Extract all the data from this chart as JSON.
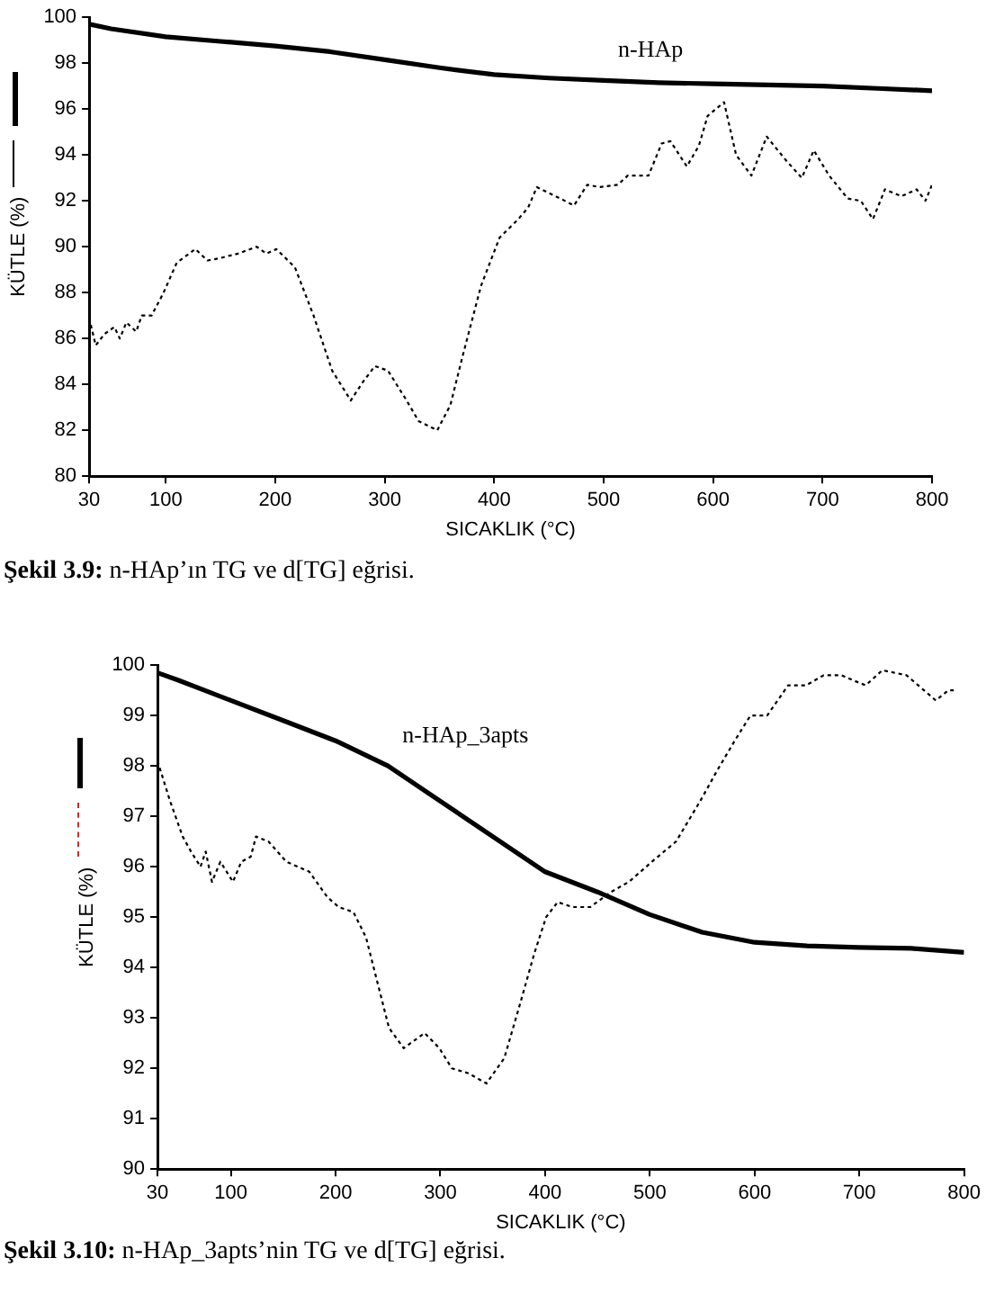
{
  "chart_data": [
    {
      "type": "line",
      "xlabel": "SICAKLIK (°C)",
      "ylabel": "KÜTLE (%)",
      "xlim": [
        30,
        800
      ],
      "xticks": [
        30,
        100,
        200,
        300,
        400,
        500,
        600,
        700,
        800
      ],
      "ylim": [
        80,
        100
      ],
      "yticks": [
        80,
        82,
        84,
        86,
        88,
        90,
        92,
        94,
        96,
        98,
        100
      ],
      "marker": "none",
      "grid": false,
      "annotations": [
        "Şekil 3.9: n-HAp’ın TG ve d[TG] eğrisi."
      ],
      "series": [
        {
          "name": "n-HAp",
          "color": "#000000",
          "line_style": "solid",
          "x": [
            30,
            50,
            100,
            150,
            200,
            250,
            300,
            350,
            400,
            450,
            500,
            550,
            600,
            650,
            700,
            750,
            800
          ],
          "values": [
            99.7,
            99.5,
            99.15,
            98.95,
            98.75,
            98.5,
            98.15,
            97.8,
            97.5,
            97.35,
            97.25,
            97.15,
            97.1,
            97.05,
            97.0,
            96.9,
            96.8
          ]
        },
        {
          "color": "#000000",
          "line_style": "dotted",
          "x": [
            30,
            36,
            44,
            53,
            58,
            64,
            73,
            78,
            87,
            98,
            110,
            127,
            138,
            149,
            166,
            183,
            192,
            201,
            218,
            235,
            252,
            269,
            280,
            291,
            303,
            320,
            331,
            348,
            360,
            371,
            388,
            405,
            422,
            431,
            439,
            456,
            473,
            485,
            496,
            513,
            522,
            541,
            553,
            561,
            576,
            587,
            595,
            610,
            621,
            635,
            649,
            666,
            681,
            692,
            706,
            723,
            735,
            746,
            757,
            772,
            786,
            794,
            800
          ],
          "values": [
            86.9,
            85.7,
            86.2,
            86.5,
            86.0,
            86.7,
            86.3,
            87.0,
            87.0,
            88.0,
            89.3,
            89.9,
            89.4,
            89.5,
            89.7,
            90.0,
            89.7,
            89.9,
            89.1,
            87.0,
            84.6,
            83.3,
            84.1,
            84.8,
            84.6,
            83.3,
            82.4,
            82.0,
            83.1,
            85.2,
            88.3,
            90.4,
            91.2,
            91.7,
            92.6,
            92.2,
            91.8,
            92.7,
            92.6,
            92.7,
            93.1,
            93.1,
            94.5,
            94.6,
            93.5,
            94.4,
            95.7,
            96.3,
            94.0,
            93.1,
            94.8,
            93.8,
            93.0,
            94.2,
            93.1,
            92.1,
            92.0,
            91.2,
            92.5,
            92.2,
            92.5,
            92.0,
            92.7
          ]
        }
      ]
    },
    {
      "type": "line",
      "xlabel": "SICAKLIK (°C)",
      "ylabel": "KÜTLE (%)",
      "xlim": [
        30,
        800
      ],
      "xticks": [
        30,
        100,
        200,
        300,
        400,
        500,
        600,
        700,
        800
      ],
      "ylim": [
        90,
        100
      ],
      "yticks": [
        90,
        91,
        92,
        93,
        94,
        95,
        96,
        97,
        98,
        99,
        100
      ],
      "marker": "none",
      "grid": false,
      "annotations": [
        "Şekil 3.10: n-HAp_3apts’nin TG ve d[TG] eğrisi."
      ],
      "series": [
        {
          "name": "n-HAp_3apts",
          "color": "#000000",
          "line_style": "solid",
          "x": [
            30,
            50,
            100,
            150,
            200,
            250,
            300,
            350,
            400,
            450,
            500,
            550,
            600,
            650,
            700,
            750,
            800
          ],
          "values": [
            99.85,
            99.7,
            99.3,
            98.9,
            98.5,
            98.0,
            97.3,
            96.6,
            95.9,
            95.5,
            95.05,
            94.7,
            94.5,
            94.43,
            94.4,
            94.38,
            94.3
          ]
        },
        {
          "color": "#000000",
          "line_style": "dotted",
          "x": [
            30,
            42,
            54,
            62,
            71,
            76,
            82,
            90,
            102,
            110,
            119,
            124,
            136,
            153,
            175,
            192,
            203,
            217,
            229,
            240,
            251,
            265,
            285,
            299,
            311,
            327,
            344,
            361,
            375,
            390,
            401,
            412,
            426,
            443,
            463,
            480,
            502,
            525,
            548,
            564,
            581,
            596,
            612,
            632,
            649,
            666,
            683,
            694,
            706,
            722,
            745,
            773,
            785,
            791
          ],
          "values": [
            98.1,
            97.3,
            96.6,
            96.3,
            96.0,
            96.3,
            95.7,
            96.1,
            95.7,
            96.1,
            96.2,
            96.6,
            96.5,
            96.1,
            95.9,
            95.4,
            95.2,
            95.1,
            94.6,
            93.7,
            92.8,
            92.4,
            92.7,
            92.4,
            92.0,
            91.9,
            91.7,
            92.2,
            93.2,
            94.3,
            95.0,
            95.3,
            95.2,
            95.2,
            95.5,
            95.7,
            96.1,
            96.5,
            97.3,
            97.9,
            98.5,
            99.0,
            99.0,
            99.6,
            99.6,
            99.8,
            99.8,
            99.7,
            99.6,
            99.9,
            99.8,
            99.3,
            99.5,
            99.5
          ]
        }
      ]
    }
  ]
}
